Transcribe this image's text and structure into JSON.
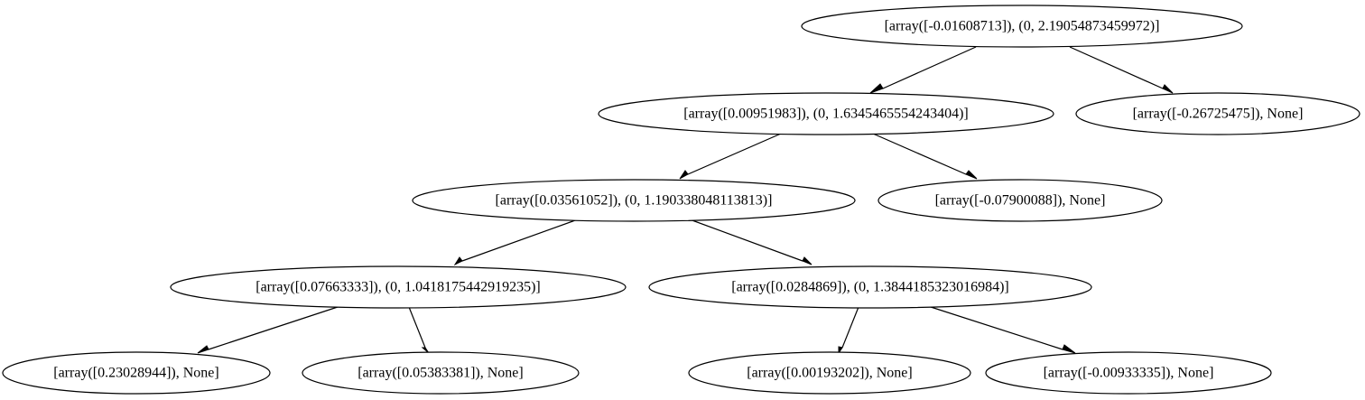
{
  "tree": {
    "nodes": [
      {
        "id": "n0",
        "label": "[array([-0.01608713]), (0, 2.19054873459972)]"
      },
      {
        "id": "n1",
        "label": "[array([0.00951983]), (0, 1.6345465554243404)]"
      },
      {
        "id": "n2",
        "label": "[array([-0.26725475]), None]"
      },
      {
        "id": "n3",
        "label": "[array([0.03561052]), (0, 1.190338048113813)]"
      },
      {
        "id": "n4",
        "label": "[array([-0.07900088]), None]"
      },
      {
        "id": "n5",
        "label": "[array([0.07663333]), (0, 1.0418175442919235)]"
      },
      {
        "id": "n6",
        "label": "[array([0.0284869]), (0, 1.3844185323016984)]"
      },
      {
        "id": "n7",
        "label": "[array([0.23028944]), None]"
      },
      {
        "id": "n8",
        "label": "[array([0.05383381]), None]"
      },
      {
        "id": "n9",
        "label": "[array([0.00193202]), None]"
      },
      {
        "id": "n10",
        "label": "[array([-0.00933335]), None]"
      }
    ],
    "edges": [
      {
        "from": "n0",
        "to": "n1"
      },
      {
        "from": "n0",
        "to": "n2"
      },
      {
        "from": "n1",
        "to": "n3"
      },
      {
        "from": "n1",
        "to": "n4"
      },
      {
        "from": "n3",
        "to": "n5"
      },
      {
        "from": "n3",
        "to": "n6"
      },
      {
        "from": "n5",
        "to": "n7"
      },
      {
        "from": "n5",
        "to": "n8"
      },
      {
        "from": "n6",
        "to": "n9"
      },
      {
        "from": "n6",
        "to": "n10"
      }
    ]
  }
}
